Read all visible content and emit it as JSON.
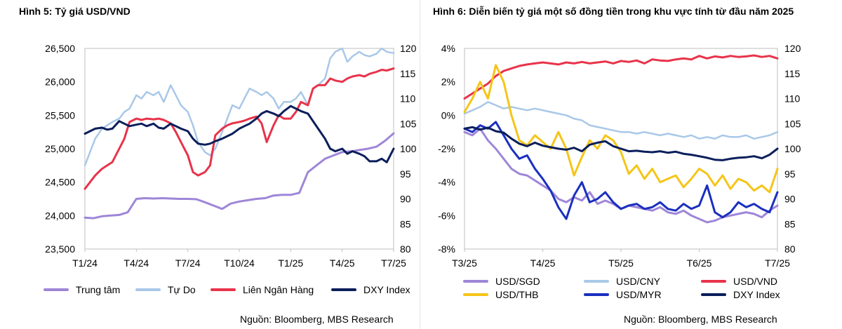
{
  "chart_data": [
    {
      "type": "line",
      "title": "Hình 5: Tỷ giá USD/VND",
      "x_ticks": [
        "T1/24",
        "T4/24",
        "T7/24",
        "T10/24",
        "T1/25",
        "T4/25",
        "T7/25"
      ],
      "ylim": [
        23500,
        26500
      ],
      "y_ticks": [
        "23,500",
        "24,000",
        "24,500",
        "25,000",
        "25,500",
        "26,000",
        "26,500"
      ],
      "y2lim": [
        80,
        120
      ],
      "y2_ticks": [
        "80",
        "85",
        "90",
        "95",
        "100",
        "105",
        "110",
        "115",
        "120"
      ],
      "grid": false,
      "legend_position": "bottom",
      "source": "Nguồn: Bloomberg, MBS Research",
      "x_range": [
        0,
        18
      ],
      "series": [
        {
          "name": "Trung tâm",
          "color": "#9e86d8",
          "axis": "left",
          "width": 3,
          "x": [
            0,
            0.5,
            1,
            1.5,
            2,
            2.5,
            3,
            3.5,
            4,
            4.5,
            5,
            5.5,
            6,
            6.5,
            7,
            7.5,
            8,
            8.5,
            9,
            9.5,
            10,
            10.5,
            11,
            11.5,
            12,
            12.5,
            13,
            13.5,
            14,
            14.5,
            15,
            15.5,
            16,
            16.5,
            17,
            17.5,
            18
          ],
          "y": [
            23970,
            23960,
            23990,
            24000,
            24010,
            24050,
            24250,
            24260,
            24255,
            24260,
            24255,
            24250,
            24250,
            24245,
            24200,
            24150,
            24100,
            24180,
            24210,
            24230,
            24250,
            24260,
            24300,
            24310,
            24310,
            24340,
            24650,
            24750,
            24850,
            24900,
            24950,
            24960,
            24980,
            25000,
            25030,
            25120,
            25230
          ]
        },
        {
          "name": "Tự Do",
          "color": "#a9c8e8",
          "axis": "left",
          "width": 2.5,
          "x": [
            0,
            0.3,
            0.6,
            1,
            1.3,
            1.6,
            2,
            2.3,
            2.6,
            3,
            3.3,
            3.6,
            4,
            4.3,
            4.6,
            5,
            5.3,
            5.6,
            6,
            6.3,
            6.6,
            7,
            7.3,
            7.6,
            8,
            8.3,
            8.6,
            9,
            9.3,
            9.6,
            10,
            10.3,
            10.6,
            11,
            11.3,
            11.6,
            12,
            12.3,
            12.6,
            13,
            13.3,
            13.6,
            14,
            14.3,
            14.6,
            15,
            15.3,
            15.6,
            16,
            16.3,
            16.6,
            17,
            17.3,
            17.6,
            18
          ],
          "y": [
            24750,
            24950,
            25150,
            25300,
            25350,
            25400,
            25450,
            25550,
            25600,
            25800,
            25750,
            25850,
            25800,
            25850,
            25700,
            25950,
            25800,
            25650,
            25550,
            25350,
            25100,
            24950,
            24900,
            25000,
            25250,
            25450,
            25650,
            25600,
            25750,
            25900,
            25850,
            25800,
            25850,
            25750,
            25600,
            25700,
            25700,
            25750,
            25850,
            25650,
            25900,
            25950,
            26050,
            26350,
            26450,
            26500,
            26300,
            26380,
            26450,
            26400,
            26380,
            26420,
            26500,
            26450,
            26430
          ]
        },
        {
          "name": "Liên Ngân Hàng",
          "color": "#e8334a",
          "axis": "left",
          "width": 3,
          "x": [
            0,
            0.3,
            0.6,
            1,
            1.3,
            1.6,
            2,
            2.3,
            2.6,
            3,
            3.3,
            3.6,
            4,
            4.3,
            4.6,
            5,
            5.3,
            5.6,
            6,
            6.3,
            6.6,
            7,
            7.3,
            7.6,
            8,
            8.3,
            8.6,
            9,
            9.3,
            9.6,
            10,
            10.3,
            10.6,
            11,
            11.3,
            11.6,
            12,
            12.3,
            12.6,
            13,
            13.3,
            13.6,
            14,
            14.3,
            14.6,
            15,
            15.3,
            15.6,
            16,
            16.3,
            16.6,
            17,
            17.3,
            17.6,
            18
          ],
          "y": [
            24400,
            24500,
            24600,
            24700,
            24750,
            24800,
            25000,
            25150,
            25400,
            25450,
            25430,
            25450,
            25440,
            25450,
            25430,
            25380,
            25250,
            25100,
            24900,
            24650,
            24600,
            24650,
            24750,
            25200,
            25300,
            25350,
            25380,
            25400,
            25420,
            25450,
            25480,
            25380,
            25100,
            25350,
            25500,
            25450,
            25450,
            25550,
            25700,
            25650,
            25900,
            25950,
            25950,
            26050,
            26020,
            26000,
            26050,
            26080,
            26100,
            26080,
            26120,
            26150,
            26180,
            26170,
            26200
          ]
        },
        {
          "name": "DXY Index",
          "color": "#0a1e5a",
          "axis": "right",
          "width": 3,
          "x": [
            0,
            0.3,
            0.6,
            1,
            1.3,
            1.6,
            2,
            2.3,
            2.6,
            3,
            3.3,
            3.6,
            4,
            4.3,
            4.6,
            5,
            5.3,
            5.6,
            6,
            6.3,
            6.6,
            7,
            7.3,
            7.6,
            8,
            8.3,
            8.6,
            9,
            9.3,
            9.6,
            10,
            10.3,
            10.6,
            11,
            11.3,
            11.6,
            12,
            12.3,
            12.6,
            13,
            13.3,
            13.6,
            14,
            14.3,
            14.6,
            15,
            15.3,
            15.6,
            16,
            16.3,
            16.6,
            17,
            17.3,
            17.6,
            18
          ],
          "y": [
            103,
            103.5,
            104,
            104.2,
            103.8,
            104,
            105.5,
            105,
            104.5,
            104.8,
            105,
            104.5,
            105,
            104.2,
            104,
            105,
            104.5,
            104,
            103.5,
            102,
            101,
            100.8,
            101,
            101.5,
            102,
            102.5,
            103,
            104,
            104.5,
            105,
            106,
            107,
            107.5,
            107,
            106.5,
            107.5,
            108.5,
            108,
            107.5,
            107,
            105.5,
            104,
            102,
            100,
            99.5,
            100,
            99,
            99.5,
            99,
            98.5,
            97.5,
            97.5,
            98,
            97.3,
            100
          ]
        }
      ]
    },
    {
      "type": "line",
      "title": "Hình 6: Diễn biến tỷ giá một số đồng tiền trong khu vực tính từ đầu năm 2025",
      "x_ticks": [
        "T3/25",
        "T4/25",
        "T5/25",
        "T6/25",
        "T7/25"
      ],
      "ylim": [
        -8,
        4
      ],
      "y_ticks": [
        "-8%",
        "-6%",
        "-4%",
        "-2%",
        "0%",
        "2%",
        "4%"
      ],
      "y2lim": [
        80,
        120
      ],
      "y2_ticks": [
        "80",
        "85",
        "90",
        "95",
        "100",
        "105",
        "110",
        "115",
        "120"
      ],
      "grid": false,
      "legend_position": "bottom",
      "source": "Nguồn: Bloomberg, MBS Research",
      "x_range": [
        0,
        16
      ],
      "series": [
        {
          "name": "USD/SGD",
          "color": "#9e86d8",
          "axis": "left",
          "width": 3,
          "x": [
            0,
            0.4,
            0.8,
            1.2,
            1.6,
            2,
            2.4,
            2.8,
            3.2,
            3.6,
            4,
            4.4,
            4.8,
            5.2,
            5.6,
            6,
            6.4,
            6.8,
            7.2,
            7.6,
            8,
            8.4,
            8.8,
            9.2,
            9.6,
            10,
            10.4,
            10.8,
            11.2,
            11.6,
            12,
            12.4,
            12.8,
            13.2,
            13.6,
            14,
            14.4,
            14.8,
            15.2,
            15.6,
            16
          ],
          "y": [
            -1.0,
            -1.2,
            -0.8,
            -1.5,
            -2.0,
            -2.6,
            -3.2,
            -3.5,
            -3.6,
            -3.9,
            -4.2,
            -4.5,
            -5.0,
            -5.2,
            -4.9,
            -5.1,
            -4.6,
            -5.3,
            -5.1,
            -5.3,
            -5.6,
            -5.4,
            -5.5,
            -5.6,
            -5.7,
            -5.5,
            -5.8,
            -5.9,
            -5.7,
            -6.0,
            -6.2,
            -6.4,
            -6.3,
            -6.1,
            -6.0,
            -5.9,
            -5.8,
            -5.9,
            -6.1,
            -5.7,
            -5.4
          ]
        },
        {
          "name": "USD/CNY",
          "color": "#a9c8e8",
          "axis": "left",
          "width": 2.5,
          "x": [
            0,
            0.4,
            0.8,
            1.2,
            1.6,
            2,
            2.4,
            2.8,
            3.2,
            3.6,
            4,
            4.4,
            4.8,
            5.2,
            5.6,
            6,
            6.4,
            6.8,
            7.2,
            7.6,
            8,
            8.4,
            8.8,
            9.2,
            9.6,
            10,
            10.4,
            10.8,
            11.2,
            11.6,
            12,
            12.4,
            12.8,
            13.2,
            13.6,
            14,
            14.4,
            14.8,
            15.2,
            15.6,
            16
          ],
          "y": [
            0.1,
            0.3,
            0.5,
            0.8,
            0.6,
            0.4,
            0.5,
            0.4,
            0.3,
            0.4,
            0.3,
            0.2,
            0.1,
            0.0,
            -0.2,
            -0.3,
            -0.6,
            -0.7,
            -0.8,
            -0.9,
            -1.0,
            -1.0,
            -1.1,
            -1.0,
            -1.1,
            -1.2,
            -1.1,
            -1.2,
            -1.3,
            -1.2,
            -1.4,
            -1.3,
            -1.4,
            -1.2,
            -1.3,
            -1.3,
            -1.2,
            -1.4,
            -1.3,
            -1.2,
            -1.0
          ]
        },
        {
          "name": "USD/VND",
          "color": "#e8334a",
          "axis": "right",
          "width": 3,
          "x": [
            0,
            0.4,
            0.8,
            1.2,
            1.6,
            2,
            2.4,
            2.8,
            3.2,
            3.6,
            4,
            4.4,
            4.8,
            5.2,
            5.6,
            6,
            6.4,
            6.8,
            7.2,
            7.6,
            8,
            8.4,
            8.8,
            9.2,
            9.6,
            10,
            10.4,
            10.8,
            11.2,
            11.6,
            12,
            12.4,
            12.8,
            13.2,
            13.6,
            14,
            14.4,
            14.8,
            15.2,
            15.6,
            16
          ],
          "y": [
            110,
            111,
            112,
            113,
            114.5,
            115.5,
            116,
            116.5,
            116.8,
            117,
            117.2,
            117,
            116.8,
            117.2,
            117,
            117.3,
            117,
            117.2,
            117.4,
            117,
            117.5,
            117.3,
            117.6,
            117,
            117.8,
            117.6,
            117.5,
            117.8,
            118,
            117.8,
            118.5,
            118,
            118.4,
            118.2,
            118.5,
            118.3,
            118.4,
            118.6,
            118.3,
            118.5,
            118
          ]
        },
        {
          "name": "USD/THB",
          "color": "#f5c518",
          "axis": "left",
          "width": 3,
          "x": [
            0,
            0.4,
            0.8,
            1.2,
            1.6,
            2,
            2.4,
            2.8,
            3.2,
            3.6,
            4,
            4.4,
            4.8,
            5.2,
            5.6,
            6,
            6.4,
            6.8,
            7.2,
            7.6,
            8,
            8.4,
            8.8,
            9.2,
            9.6,
            10,
            10.4,
            10.8,
            11.2,
            11.6,
            12,
            12.4,
            12.8,
            13.2,
            13.6,
            14,
            14.4,
            14.8,
            15.2,
            15.6,
            16
          ],
          "y": [
            0.2,
            1.0,
            2.0,
            1.0,
            3.0,
            2.0,
            0.0,
            -1.5,
            -1.8,
            -1.2,
            -1.6,
            -2.0,
            -1.0,
            -2.0,
            -3.6,
            -2.5,
            -1.5,
            -2.0,
            -1.2,
            -1.5,
            -2.2,
            -3.5,
            -3.0,
            -3.8,
            -3.2,
            -4.0,
            -3.8,
            -3.6,
            -4.3,
            -3.8,
            -3.2,
            -3.5,
            -4.2,
            -3.6,
            -4.4,
            -3.8,
            -4.0,
            -4.5,
            -4.2,
            -4.6,
            -3.2
          ]
        },
        {
          "name": "USD/MYR",
          "color": "#1a2fbf",
          "axis": "left",
          "width": 3,
          "x": [
            0,
            0.4,
            0.8,
            1.2,
            1.6,
            2,
            2.4,
            2.8,
            3.2,
            3.6,
            4,
            4.4,
            4.8,
            5.2,
            5.6,
            6,
            6.4,
            6.8,
            7.2,
            7.6,
            8,
            8.4,
            8.8,
            9.2,
            9.6,
            10,
            10.4,
            10.8,
            11.2,
            11.6,
            12,
            12.4,
            12.8,
            13.2,
            13.6,
            14,
            14.4,
            14.8,
            15.2,
            15.6,
            16
          ],
          "y": [
            -0.8,
            -1.0,
            -0.6,
            -0.8,
            -0.4,
            -1.2,
            -2.0,
            -2.6,
            -2.4,
            -3.2,
            -3.8,
            -4.5,
            -5.5,
            -6.2,
            -4.8,
            -4.0,
            -5.2,
            -5.0,
            -4.6,
            -5.2,
            -5.6,
            -5.4,
            -5.3,
            -5.6,
            -5.5,
            -5.2,
            -5.6,
            -5.7,
            -5.3,
            -5.6,
            -5.4,
            -4.2,
            -5.8,
            -6.1,
            -5.8,
            -5.2,
            -5.5,
            -5.3,
            -5.6,
            -5.8,
            -4.6
          ]
        },
        {
          "name": "DXY Index",
          "color": "#0a1e5a",
          "axis": "right",
          "width": 3,
          "x": [
            0,
            0.4,
            0.8,
            1.2,
            1.6,
            2,
            2.4,
            2.8,
            3.2,
            3.6,
            4,
            4.4,
            4.8,
            5.2,
            5.6,
            6,
            6.4,
            6.8,
            7.2,
            7.6,
            8,
            8.4,
            8.8,
            9.2,
            9.6,
            10,
            10.4,
            10.8,
            11.2,
            11.6,
            12,
            12.4,
            12.8,
            13.2,
            13.6,
            14,
            14.4,
            14.8,
            15.2,
            15.6,
            16
          ],
          "y": [
            104,
            104.3,
            103.8,
            104.2,
            103.5,
            103.2,
            102,
            101,
            100.5,
            101.2,
            100.6,
            100.3,
            100,
            99.8,
            100.2,
            99.5,
            100.8,
            101.2,
            101.5,
            100.5,
            100,
            99.5,
            99.6,
            99.4,
            99.3,
            99.5,
            99.2,
            99.4,
            99,
            98.8,
            98.5,
            98.2,
            97.8,
            97.7,
            98,
            98.2,
            98.3,
            98.5,
            98.1,
            98.8,
            100
          ]
        }
      ]
    }
  ]
}
